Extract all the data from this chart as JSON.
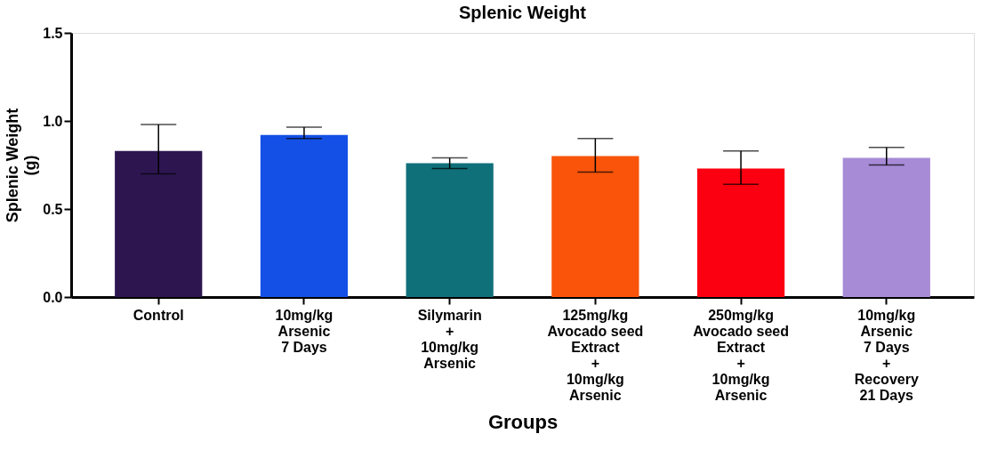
{
  "chart_data": {
    "type": "bar",
    "title": "Splenic Weight",
    "xlabel": "Groups",
    "ylabel": "Splenic Weight\n(g)",
    "categories": [
      "Control",
      "10mg/kg\nArsenic\n7 Days",
      "Silymarin\n+\n10mg/kg\nArsenic",
      "125mg/kg\nAvocado seed\nExtract\n+\n10mg/kg\nArsenic",
      "250mg/kg\nAvocado seed\nExtract\n+\n10mg/kg\nArsenic",
      "10mg/kg\nArsenic\n7 Days\n+\nRecovery\n 21 Days"
    ],
    "values": [
      0.83,
      0.92,
      0.76,
      0.8,
      0.73,
      0.79
    ],
    "errors": [
      [
        0.7,
        0.98
      ],
      [
        0.9,
        0.965
      ],
      [
        0.73,
        0.79
      ],
      [
        0.71,
        0.9
      ],
      [
        0.64,
        0.83
      ],
      [
        0.75,
        0.85
      ]
    ],
    "colors": [
      "#2d1650",
      "#1450e6",
      "#10707a",
      "#f9540a",
      "#fb0010",
      "#a78bd6"
    ],
    "ylim": [
      0,
      1.5
    ],
    "yticks": [
      {
        "value": 0,
        "label": "0.0"
      },
      {
        "value": 0.5,
        "label": "0.5"
      },
      {
        "value": 1,
        "label": "1.0"
      },
      {
        "value": 1.5,
        "label": "1.5"
      }
    ],
    "grid": false,
    "legend": false
  }
}
